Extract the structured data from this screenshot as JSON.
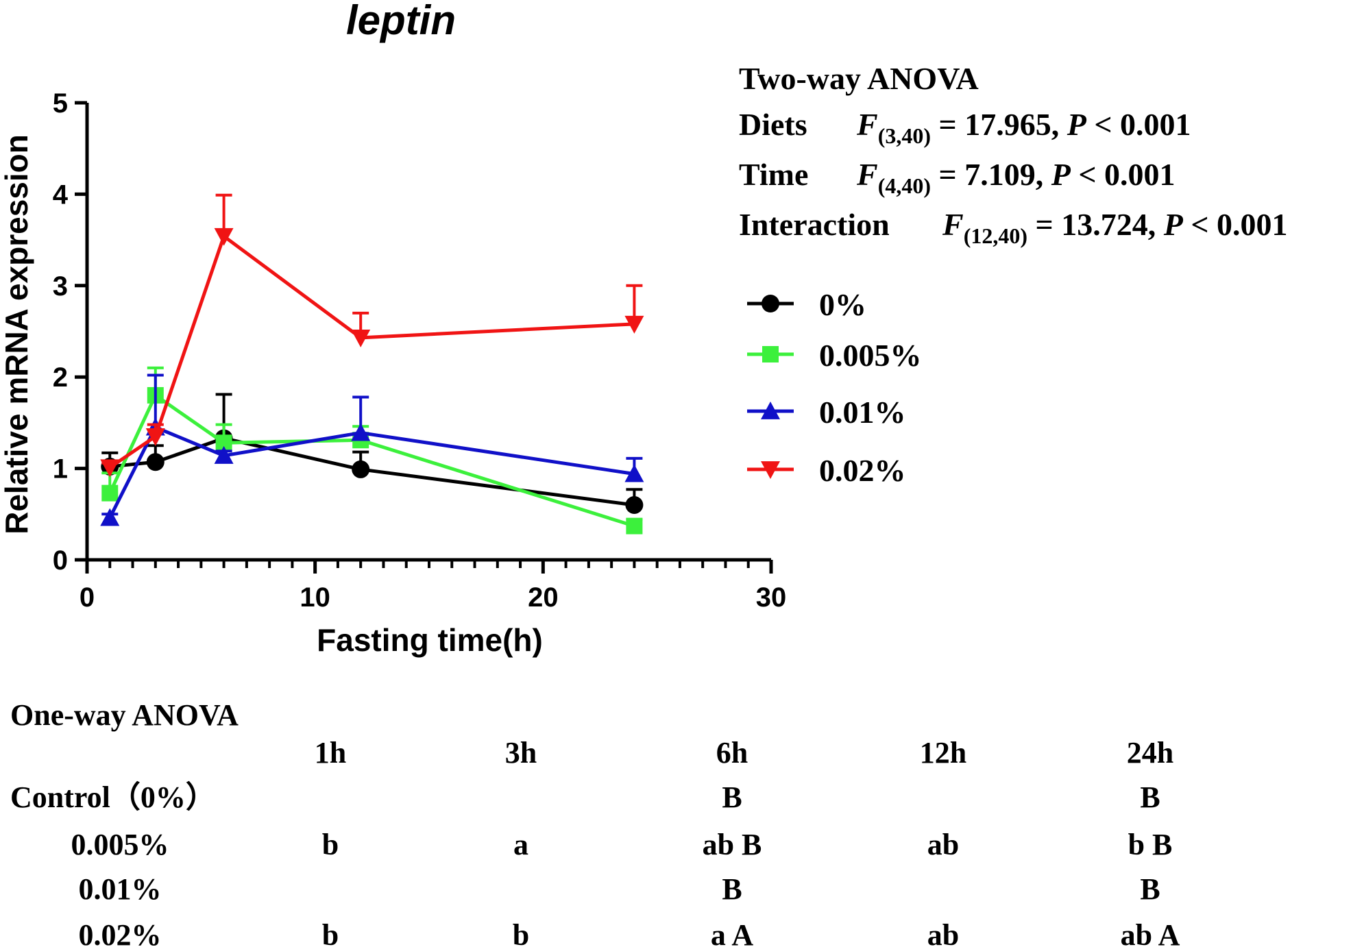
{
  "chart_data": {
    "type": "line",
    "title": "leptin",
    "xlabel": "Fasting time(h)",
    "ylabel": "Relative mRNA expression",
    "xlim": [
      0,
      30
    ],
    "ylim": [
      0,
      5
    ],
    "xticks": [
      0,
      10,
      20,
      30
    ],
    "yticks": [
      0,
      1,
      2,
      3,
      4,
      5
    ],
    "x": [
      1,
      3,
      6,
      12,
      24
    ],
    "series": [
      {
        "name": "0%",
        "color": "#000000",
        "marker": "circle",
        "errorbar": "up",
        "values": [
          1.02,
          1.07,
          1.33,
          0.99,
          0.6
        ],
        "errors": [
          0.15,
          0.18,
          0.48,
          0.19,
          0.17
        ]
      },
      {
        "name": "0.005%",
        "color": "#3CF03C",
        "marker": "square",
        "errorbar": "up",
        "values": [
          0.73,
          1.8,
          1.28,
          1.31,
          0.37
        ],
        "errors": [
          0.22,
          0.3,
          0.2,
          0.15,
          0.07
        ]
      },
      {
        "name": "0.01%",
        "color": "#1010C8",
        "marker": "triangle-up",
        "errorbar": "up",
        "values": [
          0.46,
          1.45,
          1.14,
          1.39,
          0.94
        ],
        "errors": [
          0.04,
          0.57,
          0.05,
          0.39,
          0.17
        ]
      },
      {
        "name": "0.02%",
        "color": "#F01414",
        "marker": "triangle-down",
        "errorbar": "up",
        "values": [
          1.01,
          1.35,
          3.54,
          2.43,
          2.58
        ],
        "errors": [
          0.05,
          0.13,
          0.45,
          0.27,
          0.42
        ]
      }
    ]
  },
  "two_way_anova": {
    "heading": "Two-way ANOVA",
    "rows": [
      {
        "label": "Diets",
        "f": "F",
        "df": "(3,40)",
        "value": " = 17.965, ",
        "p": "P",
        "pval": " < 0.001"
      },
      {
        "label": "Time",
        "f": "F",
        "df": "(4,40)",
        "value": " = 7.109, ",
        "p": "P",
        "pval": " < 0.001"
      },
      {
        "label": "Interaction",
        "f": "F",
        "df": "(12,40)",
        "value": " = 13.724,  ",
        "p": "P",
        "pval": " < 0.001"
      }
    ]
  },
  "one_way_anova": {
    "heading": "One-way ANOVA",
    "columns": [
      "1h",
      "3h",
      "6h",
      "12h",
      "24h"
    ],
    "rows": [
      {
        "label": "Control（0%）",
        "cells": [
          "",
          "",
          "B",
          "",
          "B"
        ]
      },
      {
        "label": "0.005%",
        "cells": [
          "b",
          "a",
          "ab B",
          "ab",
          "b B"
        ]
      },
      {
        "label": "0.01%",
        "cells": [
          "",
          "",
          "B",
          "",
          "B"
        ]
      },
      {
        "label": "0.02%",
        "cells": [
          "b",
          "b",
          "a A",
          "ab",
          "ab A"
        ]
      }
    ]
  }
}
